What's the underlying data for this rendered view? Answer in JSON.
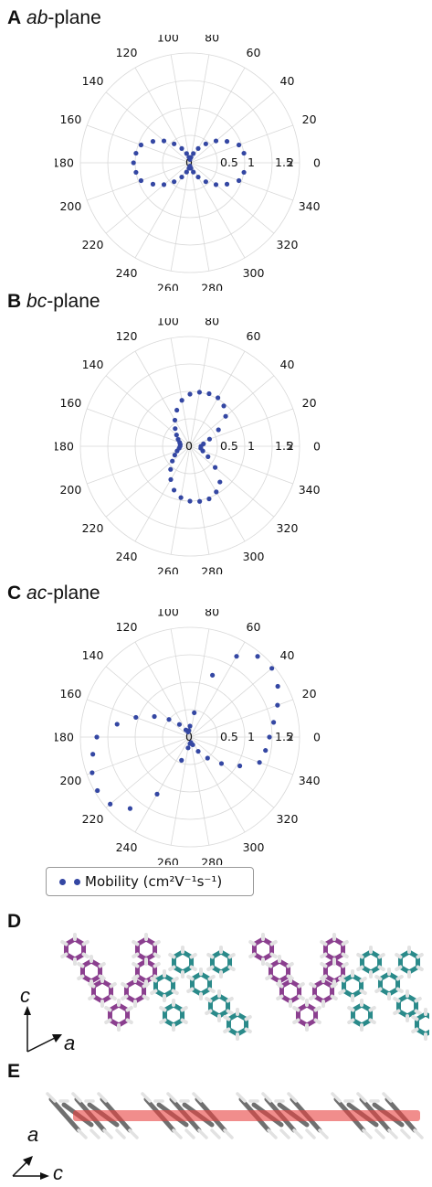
{
  "panels": [
    {
      "letter": "A",
      "plane_italic": "ab",
      "plane_suffix": "-plane",
      "chart_data": {
        "type": "scatter",
        "projection": "polar",
        "theta_unit": "degrees",
        "theta_ticks": [
          "0",
          "20",
          "40",
          "60",
          "80",
          "100",
          "120",
          "140",
          "160",
          "180",
          "200",
          "220",
          "240",
          "260",
          "280",
          "300",
          "320",
          "340"
        ],
        "r_ticks": [
          "0",
          "0.5",
          "1",
          "1.5",
          "2"
        ],
        "rlim": [
          0,
          2
        ],
        "grid": true,
        "series": [
          {
            "marker_color": "#3447a3",
            "theta": [
              10,
              20,
              30,
              40,
              50,
              60,
              70,
              80,
              90,
              100,
              110,
              120,
              130,
              140,
              150,
              160,
              170,
              180,
              190,
              200,
              210,
              220,
              230,
              240,
              250,
              260,
              270,
              280,
              290,
              300,
              310,
              320,
              330,
              340,
              350
            ],
            "r": [
              1.0,
              0.95,
              0.78,
              0.62,
              0.45,
              0.3,
              0.18,
              0.1,
              0.06,
              0.1,
              0.18,
              0.3,
              0.45,
              0.62,
              0.78,
              0.95,
              1.0,
              1.03,
              1.0,
              0.95,
              0.78,
              0.62,
              0.45,
              0.3,
              0.18,
              0.1,
              0.06,
              0.1,
              0.18,
              0.3,
              0.45,
              0.62,
              0.78,
              0.95,
              1.0
            ]
          }
        ]
      }
    },
    {
      "letter": "B",
      "plane_italic": "bc",
      "plane_suffix": "-plane",
      "chart_data": {
        "type": "scatter",
        "projection": "polar",
        "theta_unit": "degrees",
        "theta_ticks": [
          "0",
          "20",
          "40",
          "60",
          "80",
          "100",
          "120",
          "140",
          "160",
          "180",
          "200",
          "220",
          "240",
          "260",
          "280",
          "300",
          "320",
          "340"
        ],
        "r_ticks": [
          "0",
          "0.5",
          "1",
          "1.5",
          "2"
        ],
        "rlim": [
          0,
          2
        ],
        "grid": true,
        "series": [
          {
            "marker_color": "#3447a3",
            "theta": [
              0,
              10,
              20,
              30,
              40,
              50,
              60,
              70,
              80,
              90,
              100,
              110,
              120,
              130,
              140,
              150,
              160,
              170,
              180,
              190,
              200,
              210,
              220,
              230,
              240,
              250,
              260,
              270,
              280,
              290,
              300,
              310,
              320,
              330,
              340,
              350
            ],
            "r": [
              0.2,
              0.25,
              0.38,
              0.6,
              0.85,
              0.96,
              1.02,
              1.02,
              1.0,
              0.95,
              0.85,
              0.7,
              0.55,
              0.42,
              0.32,
              0.25,
              0.2,
              0.18,
              0.18,
              0.2,
              0.25,
              0.32,
              0.42,
              0.55,
              0.7,
              0.85,
              0.95,
              1.0,
              1.02,
              1.02,
              0.96,
              0.85,
              0.6,
              0.38,
              0.25,
              0.2
            ]
          }
        ]
      }
    },
    {
      "letter": "C",
      "plane_italic": "ac",
      "plane_suffix": "-plane",
      "chart_data": {
        "type": "scatter",
        "projection": "polar",
        "theta_unit": "degrees",
        "theta_ticks": [
          "0",
          "20",
          "40",
          "60",
          "80",
          "100",
          "120",
          "140",
          "160",
          "180",
          "200",
          "220",
          "240",
          "260",
          "280",
          "300",
          "320",
          "340"
        ],
        "r_ticks": [
          "0",
          "0.5",
          "1",
          "1.5",
          "2"
        ],
        "rlim": [
          0,
          2
        ],
        "grid": true,
        "series": [
          {
            "marker_color": "#3447a3",
            "theta": [
              0,
              10,
              20,
              30,
              40,
              50,
              60,
              70,
              80,
              90,
              100,
              110,
              120,
              130,
              140,
              150,
              160,
              170,
              180,
              190,
              200,
              210,
              220,
              230,
              240,
              250,
              260,
              270,
              280,
              290,
              300,
              310,
              320,
              330,
              340,
              350
            ],
            "r": [
              1.45,
              1.55,
              1.7,
              1.85,
              1.95,
              1.92,
              1.7,
              1.2,
              0.45,
              0.2,
              0.12,
              0.1,
              0.15,
              0.3,
              0.5,
              0.75,
              1.05,
              1.35,
              1.7,
              1.8,
              1.9,
              1.95,
              1.9,
              1.7,
              1.2,
              0.45,
              0.2,
              0.12,
              0.1,
              0.15,
              0.3,
              0.5,
              0.75,
              1.05,
              1.35,
              1.4
            ]
          }
        ]
      }
    }
  ],
  "legend": {
    "label": "Mobility (cm²V⁻¹s⁻¹)"
  },
  "panel_d": {
    "letter": "D",
    "axis_up": "c",
    "axis_right": "a",
    "colors": {
      "purple": "#8b3f8f",
      "teal": "#2a8a8a",
      "hydrogen": "#e2e2e2"
    }
  },
  "panel_e": {
    "letter": "E",
    "axis_up": "a",
    "axis_right": "c",
    "colors": {
      "carbon": "#707070",
      "hydrogen": "#e2e2e2",
      "band": "#e8413f"
    }
  }
}
